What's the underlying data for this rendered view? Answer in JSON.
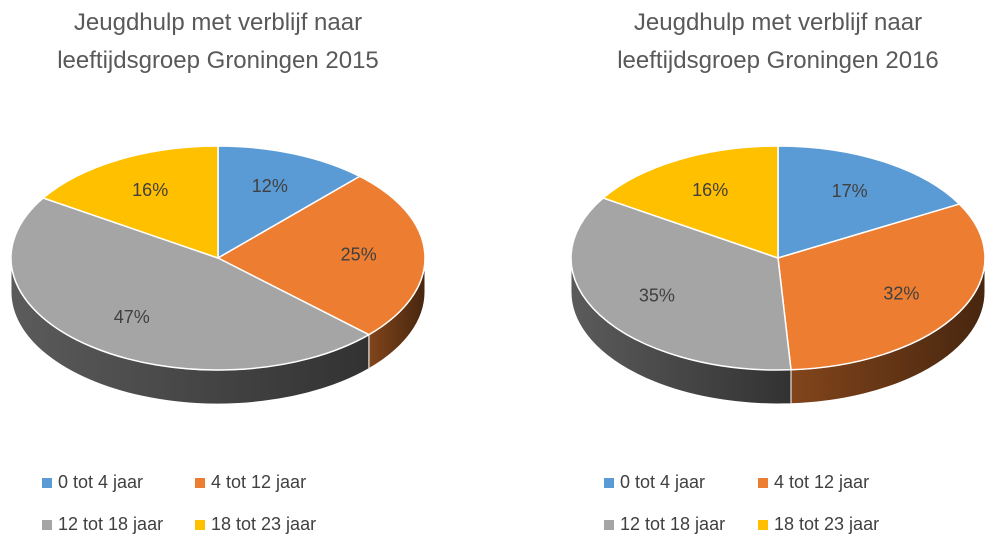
{
  "chart_data": [
    {
      "type": "pie",
      "title": "Jeugdhulp met verblijf naar leeftijdsgroep Groningen 2015",
      "series": [
        {
          "name": "0 tot 4 jaar",
          "color": "#5b9bd5"
        },
        {
          "name": "4 tot 12 jaar",
          "color": "#ed7d31"
        },
        {
          "name": "12 tot 18 jaar",
          "color": "#a5a5a5"
        },
        {
          "name": "18 tot 23 jaar",
          "color": "#ffc000"
        }
      ],
      "values": [
        12,
        25,
        47,
        16
      ],
      "value_labels": [
        "12%",
        "25%",
        "47%",
        "16%"
      ],
      "legend": "bottom"
    },
    {
      "type": "pie",
      "title": "Jeugdhulp met verblijf naar leeftijdsgroep Groningen 2016",
      "series": [
        {
          "name": "0 tot 4 jaar",
          "color": "#5b9bd5"
        },
        {
          "name": "4 tot 12 jaar",
          "color": "#ed7d31"
        },
        {
          "name": "12 tot 18 jaar",
          "color": "#a5a5a5"
        },
        {
          "name": "18 tot 23 jaar",
          "color": "#ffc000"
        }
      ],
      "values": [
        17,
        32,
        35,
        16
      ],
      "value_labels": [
        "17%",
        "32%",
        "35%",
        "16%"
      ],
      "legend": "bottom"
    }
  ]
}
